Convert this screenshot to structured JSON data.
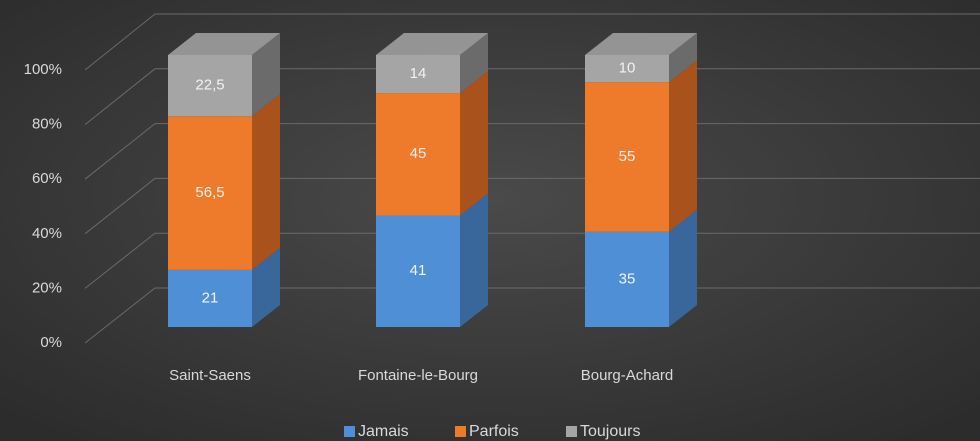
{
  "chart_data": {
    "type": "bar3d_stacked",
    "categories": [
      "Saint-Saens",
      "Fontaine-le-Bourg",
      "Bourg-Achard"
    ],
    "series": [
      {
        "name": "Jamais",
        "color": "#4f8fd6",
        "side_color": "#3a679b",
        "values": [
          21,
          41,
          35
        ]
      },
      {
        "name": "Parfois",
        "color": "#ee7a2c",
        "side_color": "#a9521b",
        "values": [
          56.5,
          45,
          55
        ],
        "value_labels": [
          "56,5",
          "45",
          "55"
        ]
      },
      {
        "name": "Toujours",
        "color": "#a5a5a5",
        "side_color": "#6b6b6b",
        "values": [
          22.5,
          14,
          10
        ],
        "value_labels": [
          "22,5",
          "14",
          "10"
        ]
      }
    ],
    "ylim": [
      0,
      100
    ],
    "yticks": [
      {
        "value": 0,
        "label": "0%"
      },
      {
        "value": 20,
        "label": "20%"
      },
      {
        "value": 40,
        "label": "40%"
      },
      {
        "value": 60,
        "label": "60%"
      },
      {
        "value": 80,
        "label": "80%"
      },
      {
        "value": 100,
        "label": "100%"
      }
    ],
    "grid": true
  }
}
